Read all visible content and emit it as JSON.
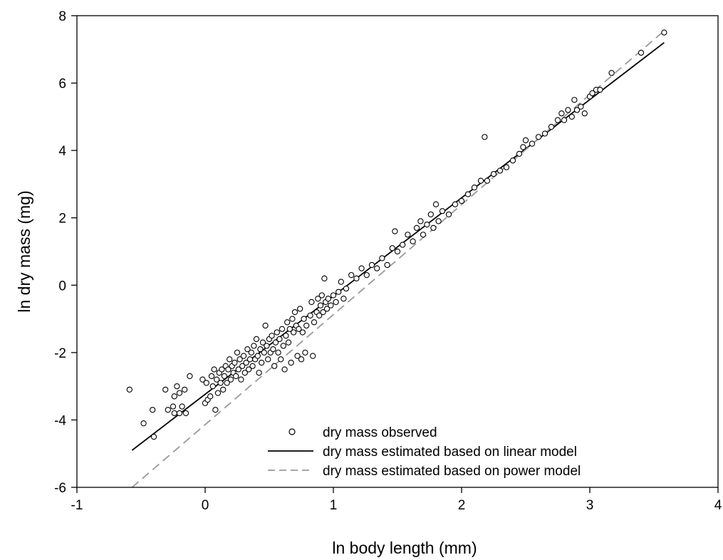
{
  "chart_data": {
    "type": "scatter",
    "xlabel": "ln body length (mm)",
    "ylabel": "ln dry mass (mg)",
    "xlim": [
      -1,
      4
    ],
    "ylim": [
      -6,
      8
    ],
    "x_ticks": [
      "-1",
      "0",
      "1",
      "2",
      "3",
      "4"
    ],
    "y_ticks": [
      "-6",
      "-4",
      "-2",
      "0",
      "2",
      "4",
      "6",
      "8"
    ],
    "grid": false,
    "legend_position": "bottom-right",
    "series": [
      {
        "name": "dry mass observed",
        "kind": "points",
        "marker": "open-circle",
        "color": "#000000",
        "points": [
          [
            -0.59,
            -3.1
          ],
          [
            -0.48,
            -4.1
          ],
          [
            -0.41,
            -3.7
          ],
          [
            -0.4,
            -4.5
          ],
          [
            -0.31,
            -3.1
          ],
          [
            -0.29,
            -3.7
          ],
          [
            -0.25,
            -3.6
          ],
          [
            -0.24,
            -3.3
          ],
          [
            -0.24,
            -3.8
          ],
          [
            -0.22,
            -3.0
          ],
          [
            -0.2,
            -3.2
          ],
          [
            -0.2,
            -3.8
          ],
          [
            -0.18,
            -3.6
          ],
          [
            -0.16,
            -3.1
          ],
          [
            -0.15,
            -3.8
          ],
          [
            -0.12,
            -2.7
          ],
          [
            -0.02,
            -2.8
          ],
          [
            0.0,
            -3.5
          ],
          [
            0.01,
            -2.9
          ],
          [
            0.02,
            -3.4
          ],
          [
            0.04,
            -3.3
          ],
          [
            0.05,
            -2.7
          ],
          [
            0.06,
            -3.0
          ],
          [
            0.07,
            -2.5
          ],
          [
            0.08,
            -3.7
          ],
          [
            0.09,
            -2.8
          ],
          [
            0.1,
            -3.2
          ],
          [
            0.11,
            -2.6
          ],
          [
            0.12,
            -2.9
          ],
          [
            0.13,
            -2.5
          ],
          [
            0.14,
            -3.1
          ],
          [
            0.15,
            -2.7
          ],
          [
            0.16,
            -2.4
          ],
          [
            0.17,
            -2.9
          ],
          [
            0.18,
            -2.5
          ],
          [
            0.19,
            -2.2
          ],
          [
            0.2,
            -2.8
          ],
          [
            0.21,
            -2.4
          ],
          [
            0.22,
            -2.6
          ],
          [
            0.23,
            -2.3
          ],
          [
            0.24,
            -2.7
          ],
          [
            0.25,
            -2.0
          ],
          [
            0.26,
            -2.5
          ],
          [
            0.27,
            -2.2
          ],
          [
            0.28,
            -2.8
          ],
          [
            0.29,
            -2.4
          ],
          [
            0.3,
            -2.1
          ],
          [
            0.31,
            -2.6
          ],
          [
            0.32,
            -2.3
          ],
          [
            0.33,
            -1.9
          ],
          [
            0.34,
            -2.5
          ],
          [
            0.35,
            -2.2
          ],
          [
            0.36,
            -2.0
          ],
          [
            0.37,
            -2.4
          ],
          [
            0.38,
            -1.8
          ],
          [
            0.39,
            -2.2
          ],
          [
            0.4,
            -1.6
          ],
          [
            0.41,
            -2.1
          ],
          [
            0.42,
            -2.6
          ],
          [
            0.43,
            -1.9
          ],
          [
            0.44,
            -2.3
          ],
          [
            0.45,
            -1.7
          ],
          [
            0.46,
            -2.0
          ],
          [
            0.47,
            -1.2
          ],
          [
            0.48,
            -1.8
          ],
          [
            0.49,
            -2.2
          ],
          [
            0.5,
            -1.6
          ],
          [
            0.51,
            -2.0
          ],
          [
            0.52,
            -1.5
          ],
          [
            0.53,
            -1.9
          ],
          [
            0.54,
            -2.4
          ],
          [
            0.55,
            -1.7
          ],
          [
            0.56,
            -1.4
          ],
          [
            0.57,
            -2.0
          ],
          [
            0.58,
            -1.6
          ],
          [
            0.59,
            -2.2
          ],
          [
            0.6,
            -1.3
          ],
          [
            0.61,
            -1.8
          ],
          [
            0.62,
            -2.5
          ],
          [
            0.63,
            -1.5
          ],
          [
            0.64,
            -1.1
          ],
          [
            0.65,
            -1.7
          ],
          [
            0.66,
            -1.3
          ],
          [
            0.67,
            -2.3
          ],
          [
            0.68,
            -1.0
          ],
          [
            0.69,
            -1.4
          ],
          [
            0.7,
            -0.8
          ],
          [
            0.71,
            -1.2
          ],
          [
            0.72,
            -2.1
          ],
          [
            0.73,
            -1.3
          ],
          [
            0.74,
            -0.7
          ],
          [
            0.75,
            -2.2
          ],
          [
            0.76,
            -1.4
          ],
          [
            0.77,
            -1.0
          ],
          [
            0.78,
            -2.0
          ],
          [
            0.79,
            -1.2
          ],
          [
            0.82,
            -0.9
          ],
          [
            0.83,
            -0.5
          ],
          [
            0.84,
            -2.1
          ],
          [
            0.85,
            -1.1
          ],
          [
            0.87,
            -0.8
          ],
          [
            0.88,
            -0.4
          ],
          [
            0.89,
            -0.9
          ],
          [
            0.9,
            -0.6
          ],
          [
            0.91,
            -0.3
          ],
          [
            0.92,
            -0.8
          ],
          [
            0.93,
            0.2
          ],
          [
            0.94,
            -0.5
          ],
          [
            0.95,
            -0.7
          ],
          [
            0.96,
            -0.4
          ],
          [
            0.98,
            -0.6
          ],
          [
            1.0,
            -0.3
          ],
          [
            1.02,
            -0.5
          ],
          [
            1.04,
            -0.2
          ],
          [
            1.06,
            0.1
          ],
          [
            1.08,
            -0.4
          ],
          [
            1.1,
            -0.1
          ],
          [
            1.14,
            0.3
          ],
          [
            1.18,
            0.2
          ],
          [
            1.22,
            0.5
          ],
          [
            1.26,
            0.3
          ],
          [
            1.3,
            0.6
          ],
          [
            1.34,
            0.5
          ],
          [
            1.38,
            0.8
          ],
          [
            1.42,
            0.6
          ],
          [
            1.46,
            1.1
          ],
          [
            1.48,
            1.6
          ],
          [
            1.5,
            1.0
          ],
          [
            1.54,
            1.2
          ],
          [
            1.58,
            1.5
          ],
          [
            1.62,
            1.3
          ],
          [
            1.65,
            1.7
          ],
          [
            1.68,
            1.9
          ],
          [
            1.7,
            1.5
          ],
          [
            1.73,
            1.8
          ],
          [
            1.76,
            2.1
          ],
          [
            1.78,
            1.7
          ],
          [
            1.8,
            2.4
          ],
          [
            1.82,
            1.9
          ],
          [
            1.85,
            2.2
          ],
          [
            1.9,
            2.1
          ],
          [
            1.95,
            2.4
          ],
          [
            2.0,
            2.5
          ],
          [
            2.05,
            2.7
          ],
          [
            2.1,
            2.9
          ],
          [
            2.15,
            3.1
          ],
          [
            2.18,
            4.4
          ],
          [
            2.2,
            3.1
          ],
          [
            2.25,
            3.3
          ],
          [
            2.3,
            3.4
          ],
          [
            2.35,
            3.5
          ],
          [
            2.4,
            3.7
          ],
          [
            2.45,
            3.9
          ],
          [
            2.48,
            4.1
          ],
          [
            2.5,
            4.3
          ],
          [
            2.55,
            4.2
          ],
          [
            2.6,
            4.4
          ],
          [
            2.65,
            4.5
          ],
          [
            2.7,
            4.7
          ],
          [
            2.75,
            4.9
          ],
          [
            2.78,
            5.1
          ],
          [
            2.8,
            4.9
          ],
          [
            2.83,
            5.2
          ],
          [
            2.86,
            5.0
          ],
          [
            2.88,
            5.5
          ],
          [
            2.9,
            5.2
          ],
          [
            2.93,
            5.3
          ],
          [
            2.96,
            5.1
          ],
          [
            3.0,
            5.6
          ],
          [
            3.02,
            5.7
          ],
          [
            3.05,
            5.8
          ],
          [
            3.08,
            5.8
          ],
          [
            3.17,
            6.3
          ],
          [
            3.4,
            6.9
          ],
          [
            3.58,
            7.5
          ]
        ]
      },
      {
        "name": "dry mass estimated based on linear model",
        "kind": "line",
        "style": "solid",
        "color": "#000000",
        "x": [
          -0.57,
          3.58
        ],
        "y": [
          -4.9,
          7.2
        ]
      },
      {
        "name": "dry mass estimated based on power model",
        "kind": "line",
        "style": "dashed",
        "color": "#999999",
        "x": [
          -0.57,
          3.58
        ],
        "y": [
          -6.0,
          7.55
        ]
      }
    ]
  }
}
